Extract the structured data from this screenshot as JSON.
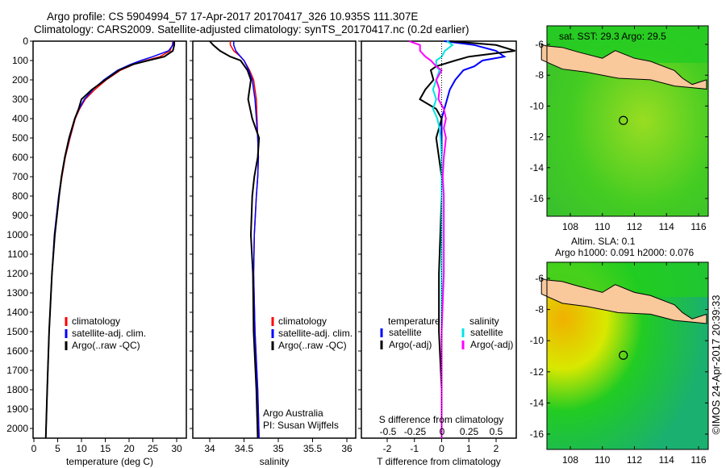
{
  "title_line1": "Argo profile: CS 5904994_57 17-Apr-2017 20170417_326 10.935S 111.307E",
  "title_line2": "Climatology: CARS2009. Satellite-adjusted climatology: synTS_20170417.nc (0.2d earlier)",
  "colors": {
    "climatology": "#ff0000",
    "satellite": "#0000ff",
    "argo": "#000000",
    "sal_satellite": "#00e5e5",
    "sal_argo": "#ff00ff",
    "land": "#f9c89b"
  },
  "chart_data": [
    {
      "type": "line",
      "xlabel": "temperature (deg C)",
      "ylabel": "depth",
      "xlim": [
        -1,
        31
      ],
      "ylim": [
        2050,
        0
      ],
      "xticks": [
        0,
        5,
        10,
        15,
        20,
        25,
        30
      ],
      "yticks": [
        0,
        100,
        200,
        300,
        400,
        500,
        600,
        700,
        800,
        900,
        1000,
        1100,
        1200,
        1300,
        1400,
        1500,
        1600,
        1700,
        1800,
        1900,
        2000
      ],
      "legend": [
        "climatology",
        "satellite-adj. clim.",
        "Argo(..raw -QC)"
      ],
      "depth": [
        0,
        20,
        50,
        80,
        100,
        120,
        150,
        200,
        250,
        300,
        350,
        400,
        500,
        600,
        700,
        800,
        1000,
        1200,
        1500,
        1800,
        2050
      ],
      "series": [
        {
          "name": "climatology",
          "values": [
            29.2,
            29.1,
            28.6,
            26.5,
            23.5,
            21,
            18.2,
            15.2,
            12.8,
            10.8,
            9.6,
            8.7,
            7.6,
            6.6,
            5.9,
            5.3,
            4.4,
            3.8,
            3.2,
            2.8,
            2.5
          ]
        },
        {
          "name": "satellite-adj. clim.",
          "values": [
            29.3,
            29.2,
            28.3,
            25,
            22.5,
            20.3,
            17.6,
            14.7,
            12.4,
            10.6,
            9.5,
            8.6,
            7.5,
            6.5,
            5.8,
            5.2,
            4.3,
            3.8,
            3.2,
            2.8,
            2.5
          ]
        },
        {
          "name": "Argo(..raw -QC)",
          "values": [
            29.5,
            29.5,
            29.2,
            27.4,
            24,
            20.8,
            17.9,
            15,
            12.2,
            10,
            9.4,
            8.6,
            7.4,
            6.5,
            5.8,
            5.3,
            4.4,
            3.8,
            3.2,
            2.8,
            2.5
          ]
        }
      ]
    },
    {
      "type": "line",
      "xlabel": "salinity",
      "xlim": [
        33.75,
        36.1
      ],
      "ylim": [
        2050,
        0
      ],
      "xticks": [
        34,
        34.5,
        35,
        35.5,
        36
      ],
      "legend": [
        "climatology",
        "satellite-adj. clim.",
        "Argo(..raw -QC)"
      ],
      "annotation": [
        "Argo Australia",
        "PI: Susan Wijffels"
      ],
      "depth": [
        0,
        20,
        50,
        80,
        100,
        150,
        200,
        300,
        400,
        500,
        600,
        700,
        800,
        1000,
        1200,
        1500,
        1800,
        2050
      ],
      "series": [
        {
          "name": "climatology",
          "values": [
            34.3,
            34.3,
            34.35,
            34.45,
            34.5,
            34.58,
            34.64,
            34.68,
            34.69,
            34.7,
            34.71,
            34.7,
            34.68,
            34.65,
            34.64,
            34.66,
            34.7,
            34.72
          ]
        },
        {
          "name": "satellite-adj. clim.",
          "values": [
            34.35,
            34.35,
            34.38,
            34.45,
            34.5,
            34.57,
            34.62,
            34.66,
            34.68,
            34.7,
            34.71,
            34.7,
            34.68,
            34.65,
            34.64,
            34.66,
            34.7,
            34.72
          ]
        },
        {
          "name": "Argo(..raw -QC)",
          "values": [
            34.0,
            34.05,
            34.15,
            34.3,
            34.45,
            34.55,
            34.6,
            34.56,
            34.62,
            34.72,
            34.7,
            34.65,
            34.62,
            34.6,
            34.63,
            34.64,
            34.68,
            34.7
          ]
        }
      ]
    },
    {
      "type": "line",
      "xlabel": "T difference from climatology",
      "xlabel2": "S difference from climatology",
      "xlim": [
        -3,
        3
      ],
      "ylim": [
        2050,
        0
      ],
      "xticks": [
        -2,
        -1,
        0,
        1,
        2
      ],
      "xticks2": [
        "-0.5",
        "-0.25",
        "0",
        "0.25",
        "0.5"
      ],
      "legend_titles": [
        "temperature",
        "salinity"
      ],
      "legend": [
        "satellite",
        "Argo(-adj)",
        "satellite",
        "Argo(-adj)"
      ],
      "depth": [
        0,
        20,
        50,
        80,
        100,
        130,
        150,
        200,
        250,
        300,
        350,
        400,
        450,
        500,
        600,
        700,
        800,
        1000,
        1200,
        1500,
        1800,
        2050
      ],
      "series": [
        {
          "name": "T satellite",
          "values": [
            0.1,
            1.2,
            2.0,
            2.3,
            1.5,
            1.2,
            0.8,
            0.5,
            0.3,
            0.2,
            0.1,
            0,
            0,
            0,
            0,
            0,
            0,
            0,
            0,
            0,
            0,
            0
          ]
        },
        {
          "name": "T Argo(-adj)",
          "values": [
            0.3,
            2.0,
            2.7,
            1.0,
            0.5,
            -0.2,
            -0.4,
            -0.3,
            -0.6,
            -0.8,
            -0.2,
            0,
            -0.1,
            -0.2,
            -0.1,
            0,
            0,
            -0.05,
            -0.1,
            -0.1,
            0,
            0
          ]
        },
        {
          "name": "S satellite",
          "values": [
            0.05,
            0.1,
            0.03,
            0,
            -0.05,
            -0.05,
            -0.02,
            -0.05,
            -0.08,
            -0.05,
            -0.08,
            -0.04,
            -0.02,
            -0.01,
            0,
            0,
            0,
            0,
            0,
            0,
            0,
            0
          ]
        },
        {
          "name": "S Argo(-adj)",
          "values": [
            -0.3,
            -0.2,
            -0.2,
            -0.15,
            -0.1,
            -0.05,
            0,
            -0.05,
            -0.02,
            -0.03,
            0.02,
            0.04,
            0.02,
            0.04,
            0.02,
            0.01,
            0.02,
            0.02,
            0.02,
            0,
            0,
            0
          ]
        }
      ]
    },
    {
      "type": "heatmap",
      "title": "sat. SST: 29.3  Argo: 29.5",
      "xlim": [
        106.2,
        116.5
      ],
      "ylim": [
        -17,
        -5
      ],
      "xticks": [
        108,
        110,
        112,
        114,
        116
      ],
      "yticks": [
        -6,
        -8,
        -10,
        -12,
        -14,
        -16
      ],
      "argo_position": [
        111.307,
        -10.935
      ]
    },
    {
      "type": "heatmap",
      "title": "Altim. SLA: 0.1",
      "subtitle": "Argo h1000: 0.091 h2000: 0.076",
      "xlim": [
        106.2,
        116.5
      ],
      "ylim": [
        -17,
        -5
      ],
      "xticks": [
        108,
        110,
        112,
        114,
        116
      ],
      "yticks": [
        -6,
        -8,
        -10,
        -12,
        -14,
        -16
      ],
      "argo_position": [
        111.307,
        -10.935
      ]
    }
  ],
  "credit": "©IMOS 24-Apr-2017 20:39:33"
}
